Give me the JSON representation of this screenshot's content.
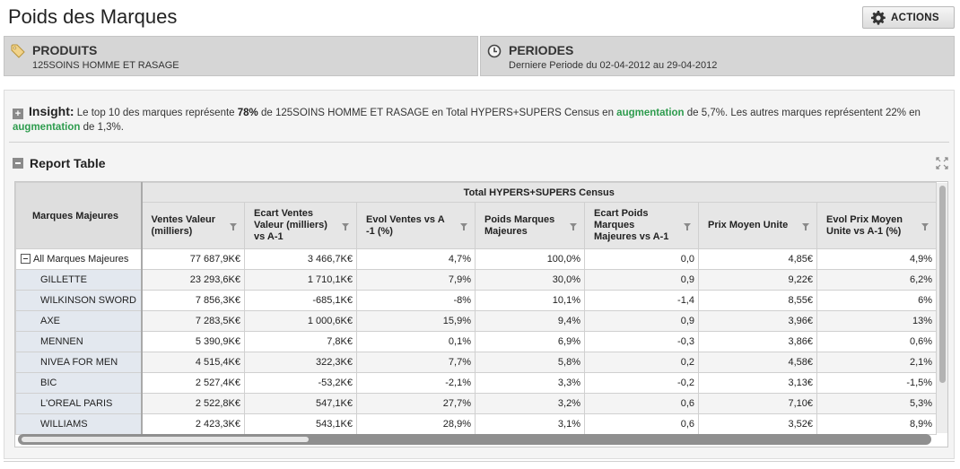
{
  "page": {
    "title": "Poids des Marques"
  },
  "actions_label": "ACTIONS",
  "filters": [
    {
      "icon": "tag-icon",
      "label": "PRODUITS",
      "value": "125SOINS HOMME ET RASAGE"
    },
    {
      "icon": "clock-icon",
      "label": "PERIODES",
      "value": "Derniere Periode du 02-04-2012 au 29-04-2012"
    }
  ],
  "insight": {
    "label": "Insight:",
    "t1": "Le top 10 des marques représente ",
    "pct1": "78%",
    "t2": " de 125SOINS HOMME ET RASAGE en Total HYPERS+SUPERS Census en ",
    "hl1": "augmentation",
    "t3": " de 5,7%. Les autres marques représentent 22% en ",
    "hl2": "augmentation",
    "t4": " de 1,3%."
  },
  "report": {
    "title": "Report Table"
  },
  "table": {
    "corner_label": "Marques Majeures",
    "group_header": "Total HYPERS+SUPERS Census",
    "columns": [
      "Ventes Valeur (milliers)",
      "Ecart Ventes Valeur (milliers) vs A-1",
      "Evol Ventes vs A -1 (%)",
      "Poids Marques Majeures",
      "Ecart Poids Marques Majeures vs A-1",
      "Prix Moyen Unite",
      "Evol Prix Moyen Unite vs A-1 (%)"
    ],
    "rows": [
      {
        "label": "All Marques Majeures",
        "cells": [
          "77 687,9K€",
          "3 466,7K€",
          "4,7%",
          "100,0%",
          "0,0",
          "4,85€",
          "4,9%"
        ]
      },
      {
        "label": "GILLETTE",
        "cells": [
          "23 293,6K€",
          "1 710,1K€",
          "7,9%",
          "30,0%",
          "0,9",
          "9,22€",
          "6,2%"
        ]
      },
      {
        "label": "WILKINSON SWORD",
        "cells": [
          "7 856,3K€",
          "-685,1K€",
          "-8%",
          "10,1%",
          "-1,4",
          "8,55€",
          "6%"
        ]
      },
      {
        "label": "AXE",
        "cells": [
          "7 283,5K€",
          "1 000,6K€",
          "15,9%",
          "9,4%",
          "0,9",
          "3,96€",
          "13%"
        ]
      },
      {
        "label": "MENNEN",
        "cells": [
          "5 390,9K€",
          "7,8K€",
          "0,1%",
          "6,9%",
          "-0,3",
          "3,86€",
          "0,6%"
        ]
      },
      {
        "label": "NIVEA FOR MEN",
        "cells": [
          "4 515,4K€",
          "322,3K€",
          "7,7%",
          "5,8%",
          "0,2",
          "4,58€",
          "2,1%"
        ]
      },
      {
        "label": "BIC",
        "cells": [
          "2 527,4K€",
          "-53,2K€",
          "-2,1%",
          "3,3%",
          "-0,2",
          "3,13€",
          "-1,5%"
        ]
      },
      {
        "label": "L'OREAL PARIS",
        "cells": [
          "2 522,8K€",
          "547,1K€",
          "27,7%",
          "3,2%",
          "0,6",
          "7,10€",
          "5,3%"
        ]
      },
      {
        "label": "WILLIAMS",
        "cells": [
          "2 423,3K€",
          "543,1K€",
          "28,9%",
          "3,1%",
          "0,6",
          "3,52€",
          "8,9%"
        ]
      }
    ]
  }
}
